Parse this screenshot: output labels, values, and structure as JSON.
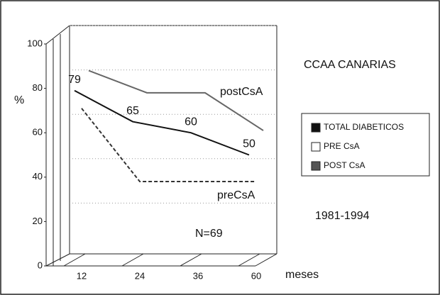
{
  "chart_data": {
    "type": "line",
    "annotations": {
      "region": "CCAA CANARIAS",
      "years": "1981-1994",
      "n": "N=69",
      "post_line": "postCsA",
      "pre_line": "preCsA"
    },
    "y_label": "%",
    "x_label": "meses",
    "categories": [
      "12",
      "24",
      "36",
      "60"
    ],
    "series": [
      {
        "name": "TOTAL DIABETICOS",
        "color": "#111111",
        "values": [
          79,
          65,
          60,
          50
        ],
        "show_labels": true
      },
      {
        "name": "PRE CsA",
        "color": "#ffffff",
        "line_color": "#333333",
        "dashed": true,
        "values": [
          71,
          38,
          38,
          38
        ]
      },
      {
        "name": "POST CsA",
        "color": "#555555",
        "line_color": "#666666",
        "values": [
          88,
          78,
          78,
          61
        ]
      }
    ],
    "ylim": [
      0,
      100
    ],
    "yticks": [
      0,
      20,
      40,
      60,
      80,
      100
    ],
    "grid": true
  }
}
